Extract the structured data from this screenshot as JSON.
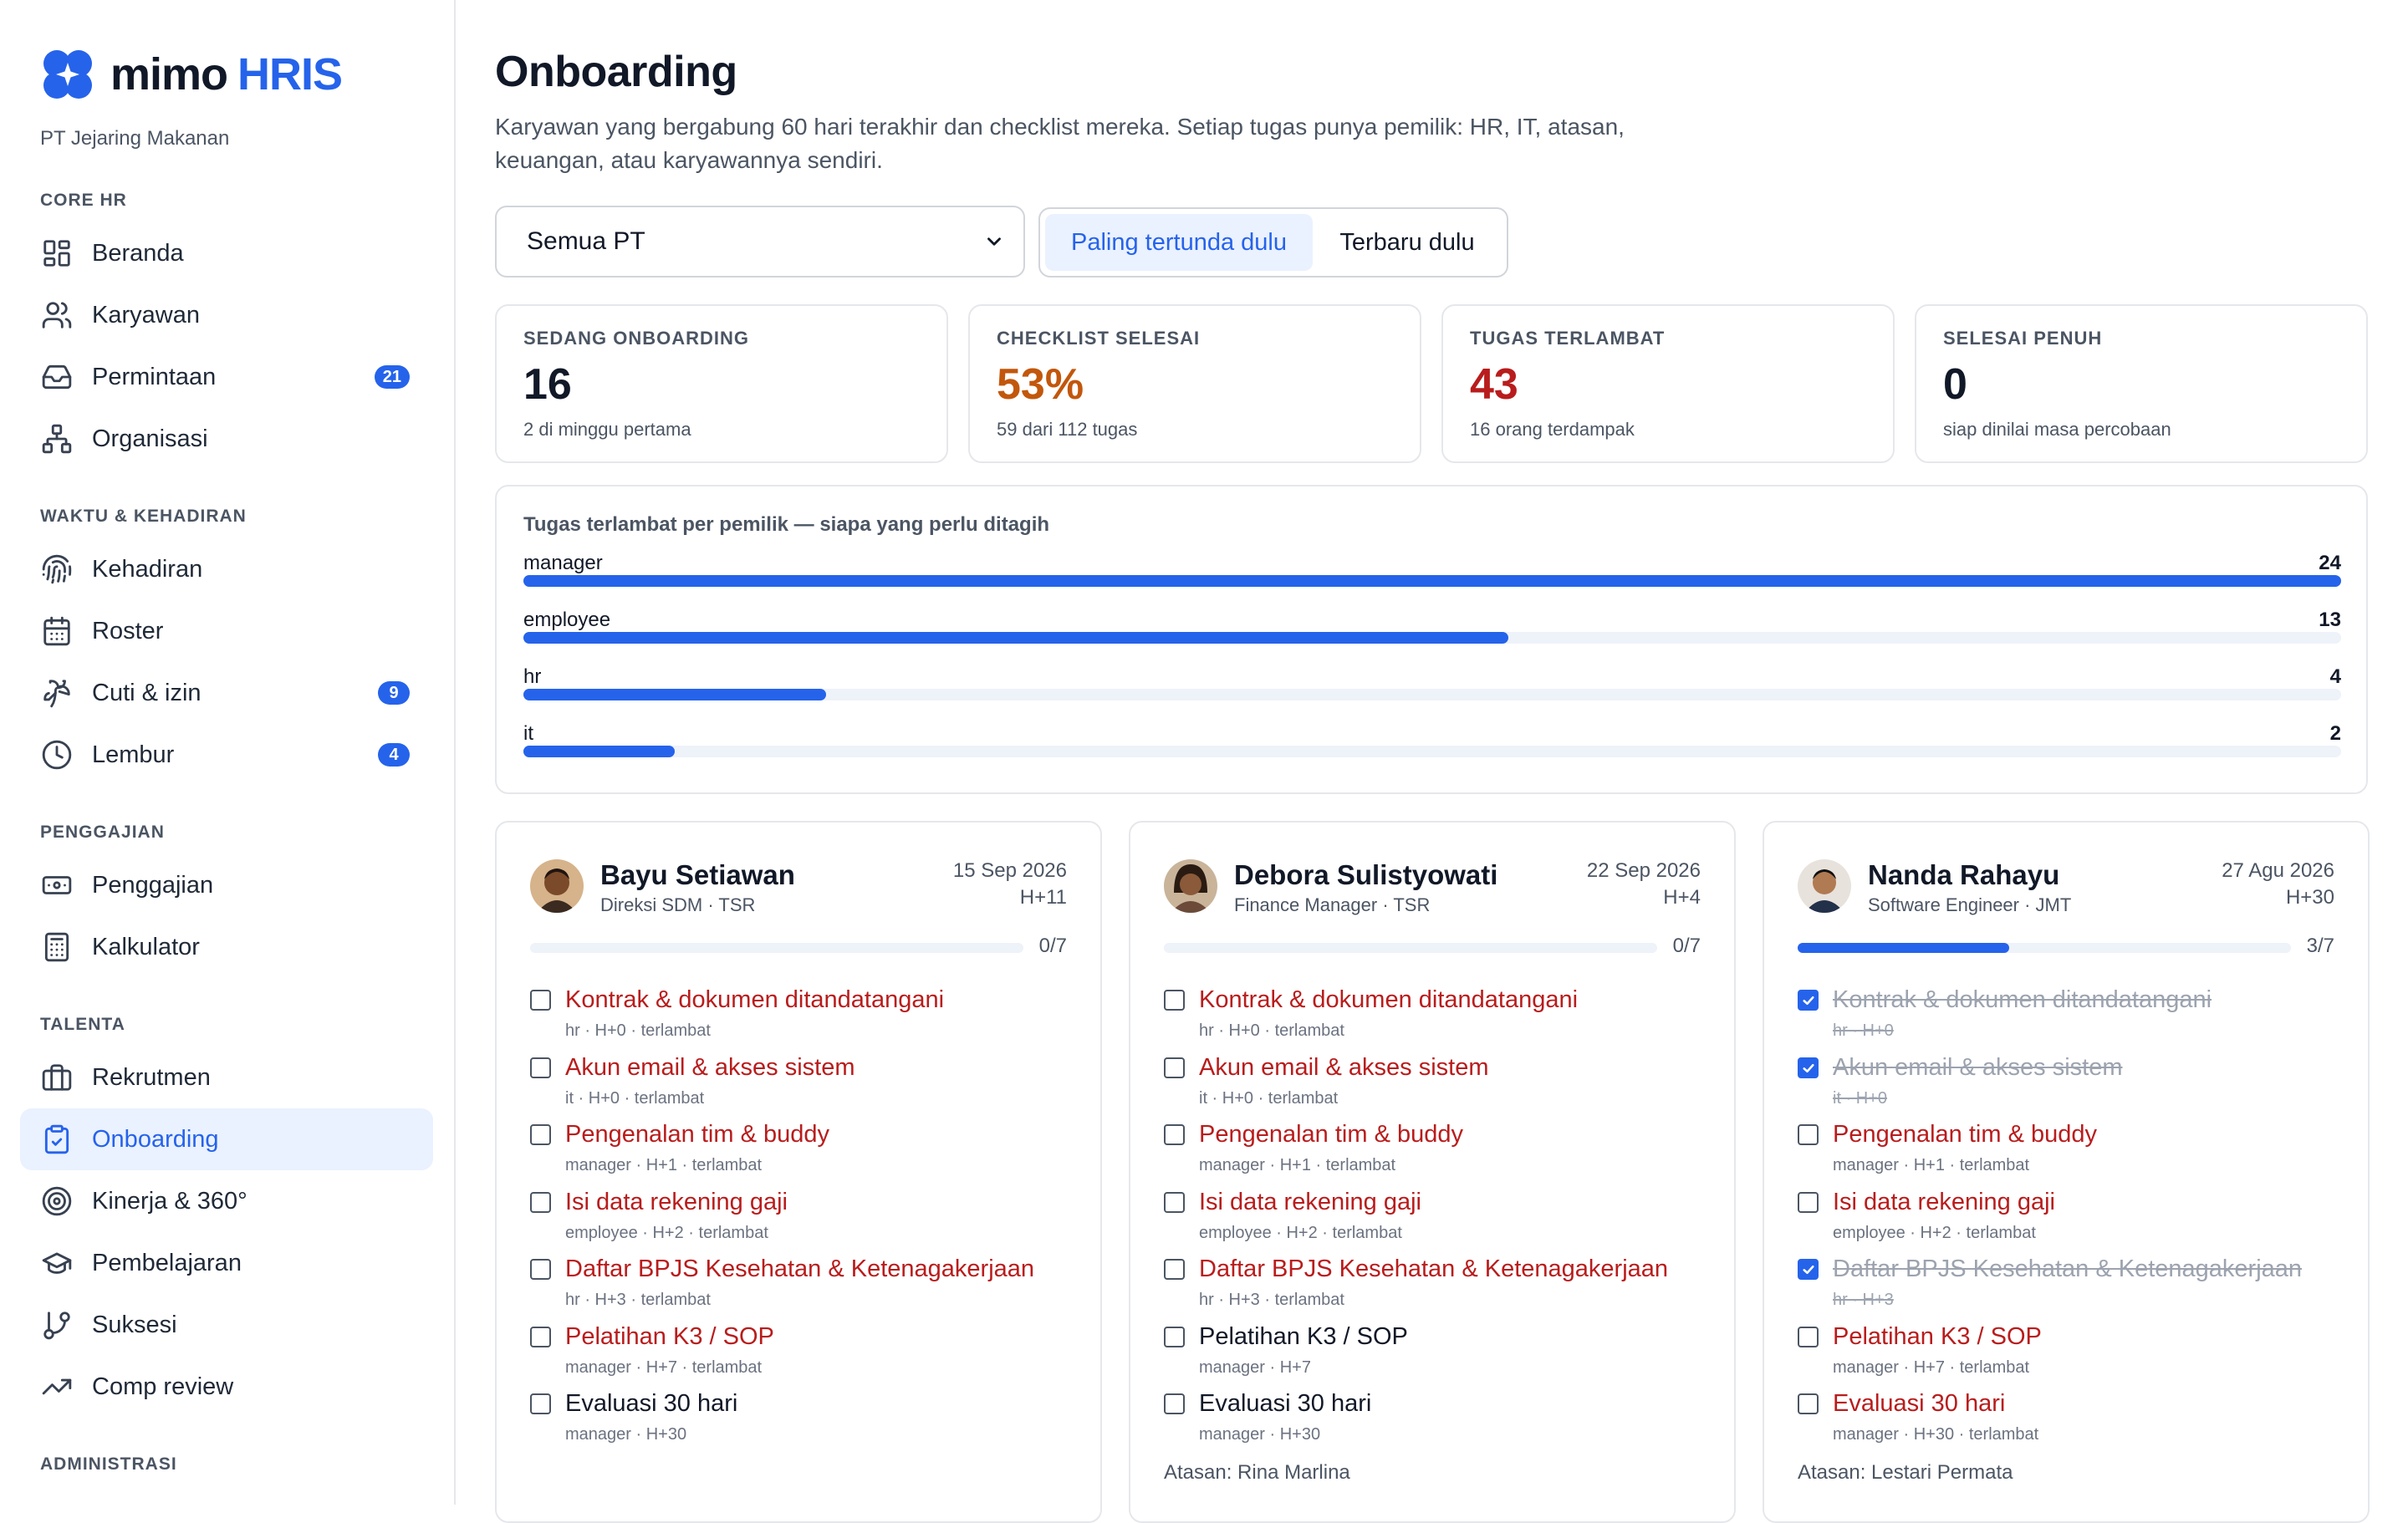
{
  "brand": {
    "name": "mimo",
    "accent": "HRIS",
    "company": "PT Jejaring Makanan",
    "color": "#2563eb"
  },
  "sidebar": {
    "sections": [
      {
        "label": "CORE HR",
        "items": [
          {
            "label": "Beranda",
            "icon": "grid-icon"
          },
          {
            "label": "Karyawan",
            "icon": "users-icon"
          },
          {
            "label": "Permintaan",
            "icon": "inbox-icon",
            "badge": "21"
          },
          {
            "label": "Organisasi",
            "icon": "org-chart-icon"
          }
        ]
      },
      {
        "label": "WAKTU & KEHADIRAN",
        "items": [
          {
            "label": "Kehadiran",
            "icon": "fingerprint-icon"
          },
          {
            "label": "Roster",
            "icon": "calendar-icon"
          },
          {
            "label": "Cuti & izin",
            "icon": "palm-tree-icon",
            "badge": "9"
          },
          {
            "label": "Lembur",
            "icon": "clock-icon",
            "badge": "4"
          }
        ]
      },
      {
        "label": "PENGGAJIAN",
        "items": [
          {
            "label": "Penggajian",
            "icon": "banknote-icon"
          },
          {
            "label": "Kalkulator",
            "icon": "calculator-icon"
          }
        ]
      },
      {
        "label": "TALENTA",
        "items": [
          {
            "label": "Rekrutmen",
            "icon": "briefcase-icon"
          },
          {
            "label": "Onboarding",
            "icon": "clipboard-check-icon",
            "active": true
          },
          {
            "label": "Kinerja & 360°",
            "icon": "target-icon"
          },
          {
            "label": "Pembelajaran",
            "icon": "graduation-cap-icon"
          },
          {
            "label": "Suksesi",
            "icon": "git-branch-icon"
          },
          {
            "label": "Comp review",
            "icon": "trending-up-icon"
          }
        ]
      },
      {
        "label": "ADMINISTRASI",
        "items": []
      }
    ]
  },
  "page": {
    "title": "Onboarding",
    "description": "Karyawan yang bergabung 60 hari terakhir dan checklist mereka. Setiap tugas punya pemilik: HR, IT, atasan, keuangan, atau karyawannya sendiri."
  },
  "filters": {
    "company_select": "Semua PT",
    "sort_options": [
      "Paling tertunda dulu",
      "Terbaru dulu"
    ],
    "sort_active": 0
  },
  "stats": [
    {
      "label": "SEDANG ONBOARDING",
      "value": "16",
      "sub": "2 di minggu pertama",
      "color": "#111827"
    },
    {
      "label": "CHECKLIST SELESAI",
      "value": "53%",
      "sub": "59 dari 112 tugas",
      "color": "#c2570c"
    },
    {
      "label": "TUGAS TERLAMBAT",
      "value": "43",
      "sub": "16 orang terdampak",
      "color": "#b91c1c"
    },
    {
      "label": "SELESAI PENUH",
      "value": "0",
      "sub": "siap dinilai masa percobaan",
      "color": "#111827"
    }
  ],
  "owners": {
    "title": "Tugas terlambat per pemilik — siapa yang perlu ditagih",
    "max": 24,
    "rows": [
      {
        "name": "manager",
        "count": 24
      },
      {
        "name": "employee",
        "count": 13
      },
      {
        "name": "hr",
        "count": 4
      },
      {
        "name": "it",
        "count": 2
      }
    ]
  },
  "employees": [
    {
      "name": "Bayu Setiawan",
      "role": "Direksi SDM · TSR",
      "date": "15 Sep 2026",
      "day": "H+11",
      "done": 0,
      "total": 7,
      "progress_label": "0/7",
      "supervisor": "",
      "avatar": "avatar-1",
      "tasks": [
        {
          "title": "Kontrak & dokumen ditandatangani",
          "meta": "hr · H+0 · terlambat",
          "state": "late"
        },
        {
          "title": "Akun email & akses sistem",
          "meta": "it · H+0 · terlambat",
          "state": "late"
        },
        {
          "title": "Pengenalan tim & buddy",
          "meta": "manager · H+1 · terlambat",
          "state": "late"
        },
        {
          "title": "Isi data rekening gaji",
          "meta": "employee · H+2 · terlambat",
          "state": "late"
        },
        {
          "title": "Daftar BPJS Kesehatan & Ketenagakerjaan",
          "meta": "hr · H+3 · terlambat",
          "state": "late"
        },
        {
          "title": "Pelatihan K3 / SOP",
          "meta": "manager · H+7 · terlambat",
          "state": "late"
        },
        {
          "title": "Evaluasi 30 hari",
          "meta": "manager · H+30",
          "state": "open"
        }
      ]
    },
    {
      "name": "Debora Sulistyowati",
      "role": "Finance Manager · TSR",
      "date": "22 Sep 2026",
      "day": "H+4",
      "done": 0,
      "total": 7,
      "progress_label": "0/7",
      "supervisor": "Atasan: Rina Marlina",
      "avatar": "avatar-2",
      "tasks": [
        {
          "title": "Kontrak & dokumen ditandatangani",
          "meta": "hr · H+0 · terlambat",
          "state": "late"
        },
        {
          "title": "Akun email & akses sistem",
          "meta": "it · H+0 · terlambat",
          "state": "late"
        },
        {
          "title": "Pengenalan tim & buddy",
          "meta": "manager · H+1 · terlambat",
          "state": "late"
        },
        {
          "title": "Isi data rekening gaji",
          "meta": "employee · H+2 · terlambat",
          "state": "late"
        },
        {
          "title": "Daftar BPJS Kesehatan & Ketenagakerjaan",
          "meta": "hr · H+3 · terlambat",
          "state": "late"
        },
        {
          "title": "Pelatihan K3 / SOP",
          "meta": "manager · H+7",
          "state": "open"
        },
        {
          "title": "Evaluasi 30 hari",
          "meta": "manager · H+30",
          "state": "open"
        }
      ]
    },
    {
      "name": "Nanda Rahayu",
      "role": "Software Engineer · JMT",
      "date": "27 Agu 2026",
      "day": "H+30",
      "done": 3,
      "total": 7,
      "progress_label": "3/7",
      "supervisor": "Atasan: Lestari Permata",
      "avatar": "avatar-3",
      "tasks": [
        {
          "title": "Kontrak & dokumen ditandatangani",
          "meta": "hr · H+0",
          "state": "done"
        },
        {
          "title": "Akun email & akses sistem",
          "meta": "it · H+0",
          "state": "done"
        },
        {
          "title": "Pengenalan tim & buddy",
          "meta": "manager · H+1 · terlambat",
          "state": "late"
        },
        {
          "title": "Isi data rekening gaji",
          "meta": "employee · H+2 · terlambat",
          "state": "late"
        },
        {
          "title": "Daftar BPJS Kesehatan & Ketenagakerjaan",
          "meta": "hr · H+3",
          "state": "done"
        },
        {
          "title": "Pelatihan K3 / SOP",
          "meta": "manager · H+7 · terlambat",
          "state": "late"
        },
        {
          "title": "Evaluasi 30 hari",
          "meta": "manager · H+30 · terlambat",
          "state": "late"
        }
      ]
    }
  ]
}
